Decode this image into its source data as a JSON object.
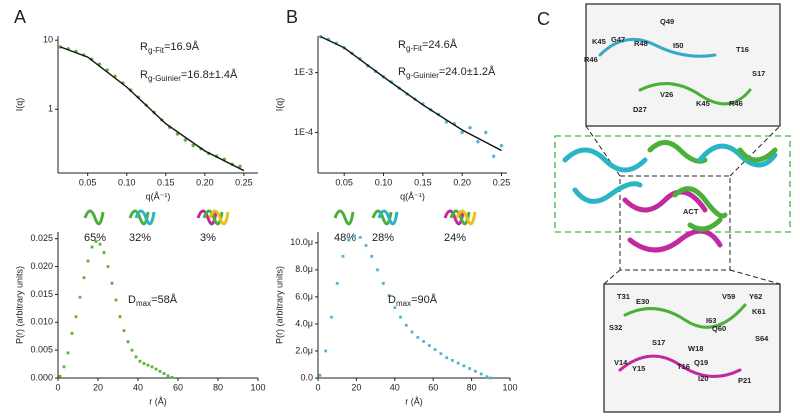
{
  "panels": {
    "a": "A",
    "b": "B",
    "c": "C"
  },
  "chart_data": [
    {
      "type": "scatter",
      "ylabel": "I(q)",
      "xlabel": "q(Å⁻¹)",
      "ylog": true,
      "xlim": [
        0.012,
        0.268
      ],
      "ylim": [
        0.12,
        11.5
      ],
      "xticks": [
        0.05,
        {
          "value": 0.1,
          "label": "0.10"
        },
        0.15,
        {
          "value": 0.2,
          "label": "0.20"
        },
        0.25
      ],
      "yticks": [
        1,
        10
      ],
      "series": [
        {
          "color": "#5ab435",
          "mark": "point",
          "x": [
            0.015,
            0.025,
            0.035,
            0.045,
            0.055,
            0.065,
            0.075,
            0.085,
            0.095,
            0.105,
            0.115,
            0.125,
            0.135,
            0.145,
            0.155,
            0.165,
            0.175,
            0.185,
            0.195,
            0.205,
            0.215,
            0.225,
            0.235,
            0.245
          ],
          "values": [
            8.0,
            7.5,
            6.9,
            6.1,
            5.3,
            4.5,
            3.7,
            3.0,
            2.4,
            1.9,
            1.5,
            1.15,
            0.9,
            0.7,
            0.55,
            0.44,
            0.36,
            0.3,
            0.27,
            0.23,
            0.21,
            0.19,
            0.16,
            0.15
          ]
        },
        {
          "color": "#111111",
          "mark": "line",
          "x": [
            0.015,
            0.05,
            0.1,
            0.15,
            0.2,
            0.25
          ],
          "values": [
            8.0,
            5.7,
            2.1,
            0.62,
            0.25,
            0.13
          ]
        }
      ],
      "annotations": [
        {
          "main": "R",
          "sub": "g-Fit",
          "rest": "=16.9Å"
        },
        {
          "main": "R",
          "sub": "g-Guinier",
          "rest": "=16.8±1.4Å"
        }
      ],
      "components": [
        "65%",
        "32%",
        "3%"
      ]
    },
    {
      "type": "scatter",
      "ylabel": "P(r) (arbitrary units)",
      "xlabel": "r (Å)",
      "xlim": [
        0,
        100
      ],
      "ylim": [
        0,
        0.0262
      ],
      "xticks": [
        0,
        20,
        40,
        60,
        80,
        100
      ],
      "yticks": [
        {
          "value": 0,
          "label": "0.000"
        },
        0.005,
        {
          "value": 0.01,
          "label": "0.010"
        },
        0.015,
        {
          "value": 0.02,
          "label": "0.020"
        },
        0.025
      ],
      "series": [
        {
          "color": "#5ab435",
          "mark": "square",
          "x": [
            1,
            3,
            5,
            7,
            9,
            11,
            13,
            15,
            17,
            19,
            21,
            23,
            25,
            27,
            29,
            31,
            33,
            35,
            37,
            39,
            41,
            43,
            45,
            47,
            49,
            51,
            53,
            55,
            57
          ],
          "values": [
            0.0003,
            0.002,
            0.0045,
            0.008,
            0.011,
            0.0145,
            0.018,
            0.021,
            0.0235,
            0.0245,
            0.024,
            0.0225,
            0.02,
            0.017,
            0.014,
            0.011,
            0.0085,
            0.0065,
            0.005,
            0.0038,
            0.003,
            0.0026,
            0.0023,
            0.002,
            0.0016,
            0.0012,
            0.0008,
            0.0004,
            0.0001
          ]
        }
      ],
      "annotations": [
        {
          "main": "D",
          "sub": "max",
          "rest": "=58Å"
        }
      ]
    },
    {
      "type": "scatter",
      "ylabel": "I(q)",
      "xlabel": "q(Å⁻¹)",
      "ylog": true,
      "xlim": [
        0.0167,
        0.257
      ],
      "ylim": [
        2.1e-05,
        0.0041
      ],
      "xticks": [
        0.05,
        {
          "value": 0.1,
          "label": "0.10"
        },
        0.15,
        {
          "value": 0.2,
          "label": "0.20"
        },
        0.25
      ],
      "yticks": [
        {
          "value": 0.0001,
          "label": "1E-4"
        },
        {
          "value": 0.001,
          "label": "1E-3"
        }
      ],
      "series": [
        {
          "color": "#4fb5d6",
          "mark": "point",
          "x": [
            0.02,
            0.03,
            0.04,
            0.05,
            0.06,
            0.07,
            0.08,
            0.09,
            0.1,
            0.11,
            0.12,
            0.13,
            0.14,
            0.15,
            0.16,
            0.17,
            0.18,
            0.19,
            0.2,
            0.21,
            0.22,
            0.23,
            0.24,
            0.25
          ],
          "values": [
            0.004,
            0.0036,
            0.0031,
            0.0026,
            0.0021,
            0.0017,
            0.0013,
            0.00105,
            0.00085,
            0.0007,
            0.00055,
            0.00044,
            0.00036,
            0.0003,
            0.00024,
            0.0002,
            0.00015,
            0.00014,
            0.0001,
            0.00012,
            7e-05,
            0.0001,
            4e-05,
            6e-05
          ]
        },
        {
          "color": "#111111",
          "mark": "line",
          "x": [
            0.02,
            0.05,
            0.1,
            0.15,
            0.2,
            0.25
          ],
          "values": [
            0.004,
            0.0026,
            0.00085,
            0.00029,
            0.00011,
            5e-05
          ]
        }
      ],
      "annotations": [
        {
          "main": "R",
          "sub": "g-Fit",
          "rest": "=24.6Å"
        },
        {
          "main": "R",
          "sub": "g-Guinier",
          "rest": "=24.0±1.2Å"
        }
      ],
      "components": [
        "48%",
        "28%",
        "24%"
      ]
    },
    {
      "type": "scatter",
      "ylabel": "P(r) (arbitrary units)",
      "xlabel": "r (Å)",
      "xlim": [
        0,
        100
      ],
      "ylim": [
        0,
        10.8
      ],
      "xticks": [
        0,
        20,
        40,
        60,
        80,
        100
      ],
      "yticks": [
        {
          "value": 0,
          "label": "0.0"
        },
        {
          "value": 2,
          "label": "2.0μ"
        },
        {
          "value": 4,
          "label": "4.0μ"
        },
        {
          "value": 6,
          "label": "6.0μ"
        },
        {
          "value": 8,
          "label": "8.0μ"
        },
        {
          "value": 10,
          "label": "10.0μ"
        }
      ],
      "series": [
        {
          "color": "#4fb5d6",
          "mark": "square",
          "x": [
            1,
            4,
            7,
            10,
            13,
            16,
            19,
            22,
            25,
            28,
            31,
            34,
            37,
            40,
            43,
            46,
            49,
            52,
            55,
            58,
            61,
            64,
            67,
            70,
            73,
            76,
            79,
            82,
            85,
            88,
            90
          ],
          "values": [
            0.2,
            2,
            4.5,
            7,
            9,
            10.2,
            10.5,
            10.4,
            9.8,
            9,
            8,
            7,
            6.1,
            5.2,
            4.5,
            3.9,
            3.4,
            3,
            2.7,
            2.4,
            2.1,
            1.8,
            1.5,
            1.3,
            1.1,
            0.9,
            0.7,
            0.5,
            0.3,
            0.1,
            0
          ]
        }
      ],
      "annotations": [
        {
          "main": "D",
          "sub": "max",
          "rest": "=90Å"
        }
      ]
    }
  ],
  "panel_c": {
    "top_labels": [
      "K45",
      "G47",
      "Q49",
      "R48",
      "I50",
      "T16",
      "R46",
      "S17",
      "V26",
      "K45",
      "R46",
      "D27"
    ],
    "center_label": "ACT",
    "bottom_labels": [
      "T31",
      "E30",
      "V59",
      "Y62",
      "K61",
      "I63",
      "Q60",
      "S32",
      "S64",
      "W18",
      "S17",
      "Q19",
      "V14",
      "Y15",
      "T16",
      "I20",
      "P21"
    ]
  }
}
